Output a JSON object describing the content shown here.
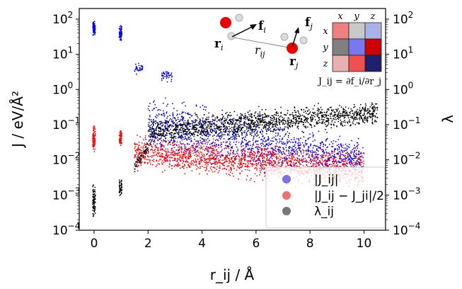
{
  "chart_data": {
    "type": "scatter",
    "xlabel": "r_ij / Å",
    "ylabel_left": "J / eV/Å²",
    "ylabel_right": "λ",
    "xlim": [
      -0.55,
      10.8
    ],
    "ylim": [
      0.0001,
      200
    ],
    "yscale": "log",
    "grid": false,
    "x_ticks": [
      "0",
      "2",
      "4",
      "6",
      "8",
      "10"
    ],
    "y_ticks": [
      "10^2",
      "10^1",
      "10^0",
      "10^-1",
      "10^-2",
      "10^-3",
      "10^-4"
    ],
    "legend_position": "lower-right",
    "series": [
      {
        "name": "|J_ij|",
        "color": "#0000ee",
        "legend_color": "#7b72e6",
        "bands": [
          {
            "x": [
              -0.05,
              0.05
            ],
            "low": [
              30,
              30
            ],
            "high": [
              100,
              100
            ],
            "n": 80
          },
          {
            "x": [
              0.93,
              1.03
            ],
            "low": [
              20,
              20
            ],
            "high": [
              80,
              80
            ],
            "n": 60
          },
          {
            "x": [
              1.5,
              1.8
            ],
            "low": [
              2.5,
              2.5
            ],
            "high": [
              6,
              6
            ],
            "n": 40
          },
          {
            "x": [
              2.5,
              2.9
            ],
            "low": [
              1.5,
              1.5
            ],
            "high": [
              5,
              4
            ],
            "n": 40
          },
          {
            "x": [
              2.0,
              10.0
            ],
            "low": [
              0.005,
              0.002
            ],
            "high": [
              1.5,
              0.05
            ],
            "n": 1400
          }
        ]
      },
      {
        "name": "|J_ij − J_ji|/2",
        "color": "#ff0000",
        "legend_color": "#f07070",
        "bands": [
          {
            "x": [
              -0.05,
              0.05
            ],
            "low": [
              0.015,
              0.015
            ],
            "high": [
              0.12,
              0.12
            ],
            "n": 80
          },
          {
            "x": [
              0.93,
              1.03
            ],
            "low": [
              0.02,
              0.02
            ],
            "high": [
              0.1,
              0.1
            ],
            "n": 60
          },
          {
            "x": [
              1.5,
              10.0
            ],
            "low": [
              0.004,
              0.001
            ],
            "high": [
              0.06,
              0.03
            ],
            "n": 1600
          }
        ]
      },
      {
        "name": "λ_ij",
        "color": "#000000",
        "legend_color": "#777777",
        "bands": [
          {
            "x": [
              -0.05,
              0.05
            ],
            "low": [
              0.00015,
              0.00015
            ],
            "high": [
              0.003,
              0.003
            ],
            "n": 80
          },
          {
            "x": [
              0.93,
              1.03
            ],
            "low": [
              0.0008,
              0.0008
            ],
            "high": [
              0.003,
              0.003
            ],
            "n": 50
          },
          {
            "x": [
              1.5,
              2.0
            ],
            "low": [
              0.004,
              0.01
            ],
            "high": [
              0.01,
              0.06
            ],
            "n": 60
          },
          {
            "x": [
              2.0,
              10.5
            ],
            "low": [
              0.02,
              0.08
            ],
            "high": [
              0.2,
              0.6
            ],
            "n": 1500
          }
        ]
      }
    ]
  },
  "inset": {
    "label_ri": "r",
    "label_ri_sub": "i",
    "label_rj": "r",
    "label_rj_sub": "j",
    "label_fi": "f",
    "label_fi_sub": "i",
    "label_fj": "f",
    "label_fj_sub": "j",
    "label_rij": "r",
    "label_rij_sub": "ij",
    "matrix_cols": [
      "x",
      "y",
      "z"
    ],
    "matrix_rows": [
      "x",
      "y",
      "z"
    ],
    "matrix_colors": [
      [
        "#f08080",
        "#c8c8c8",
        "#aab0e8"
      ],
      [
        "#808080",
        "#7878f0",
        "#cc0000"
      ],
      [
        "#e8b0b0",
        "#f05050",
        "#202070"
      ]
    ],
    "formula": "J_ij = ∂f_i/∂r_j"
  }
}
